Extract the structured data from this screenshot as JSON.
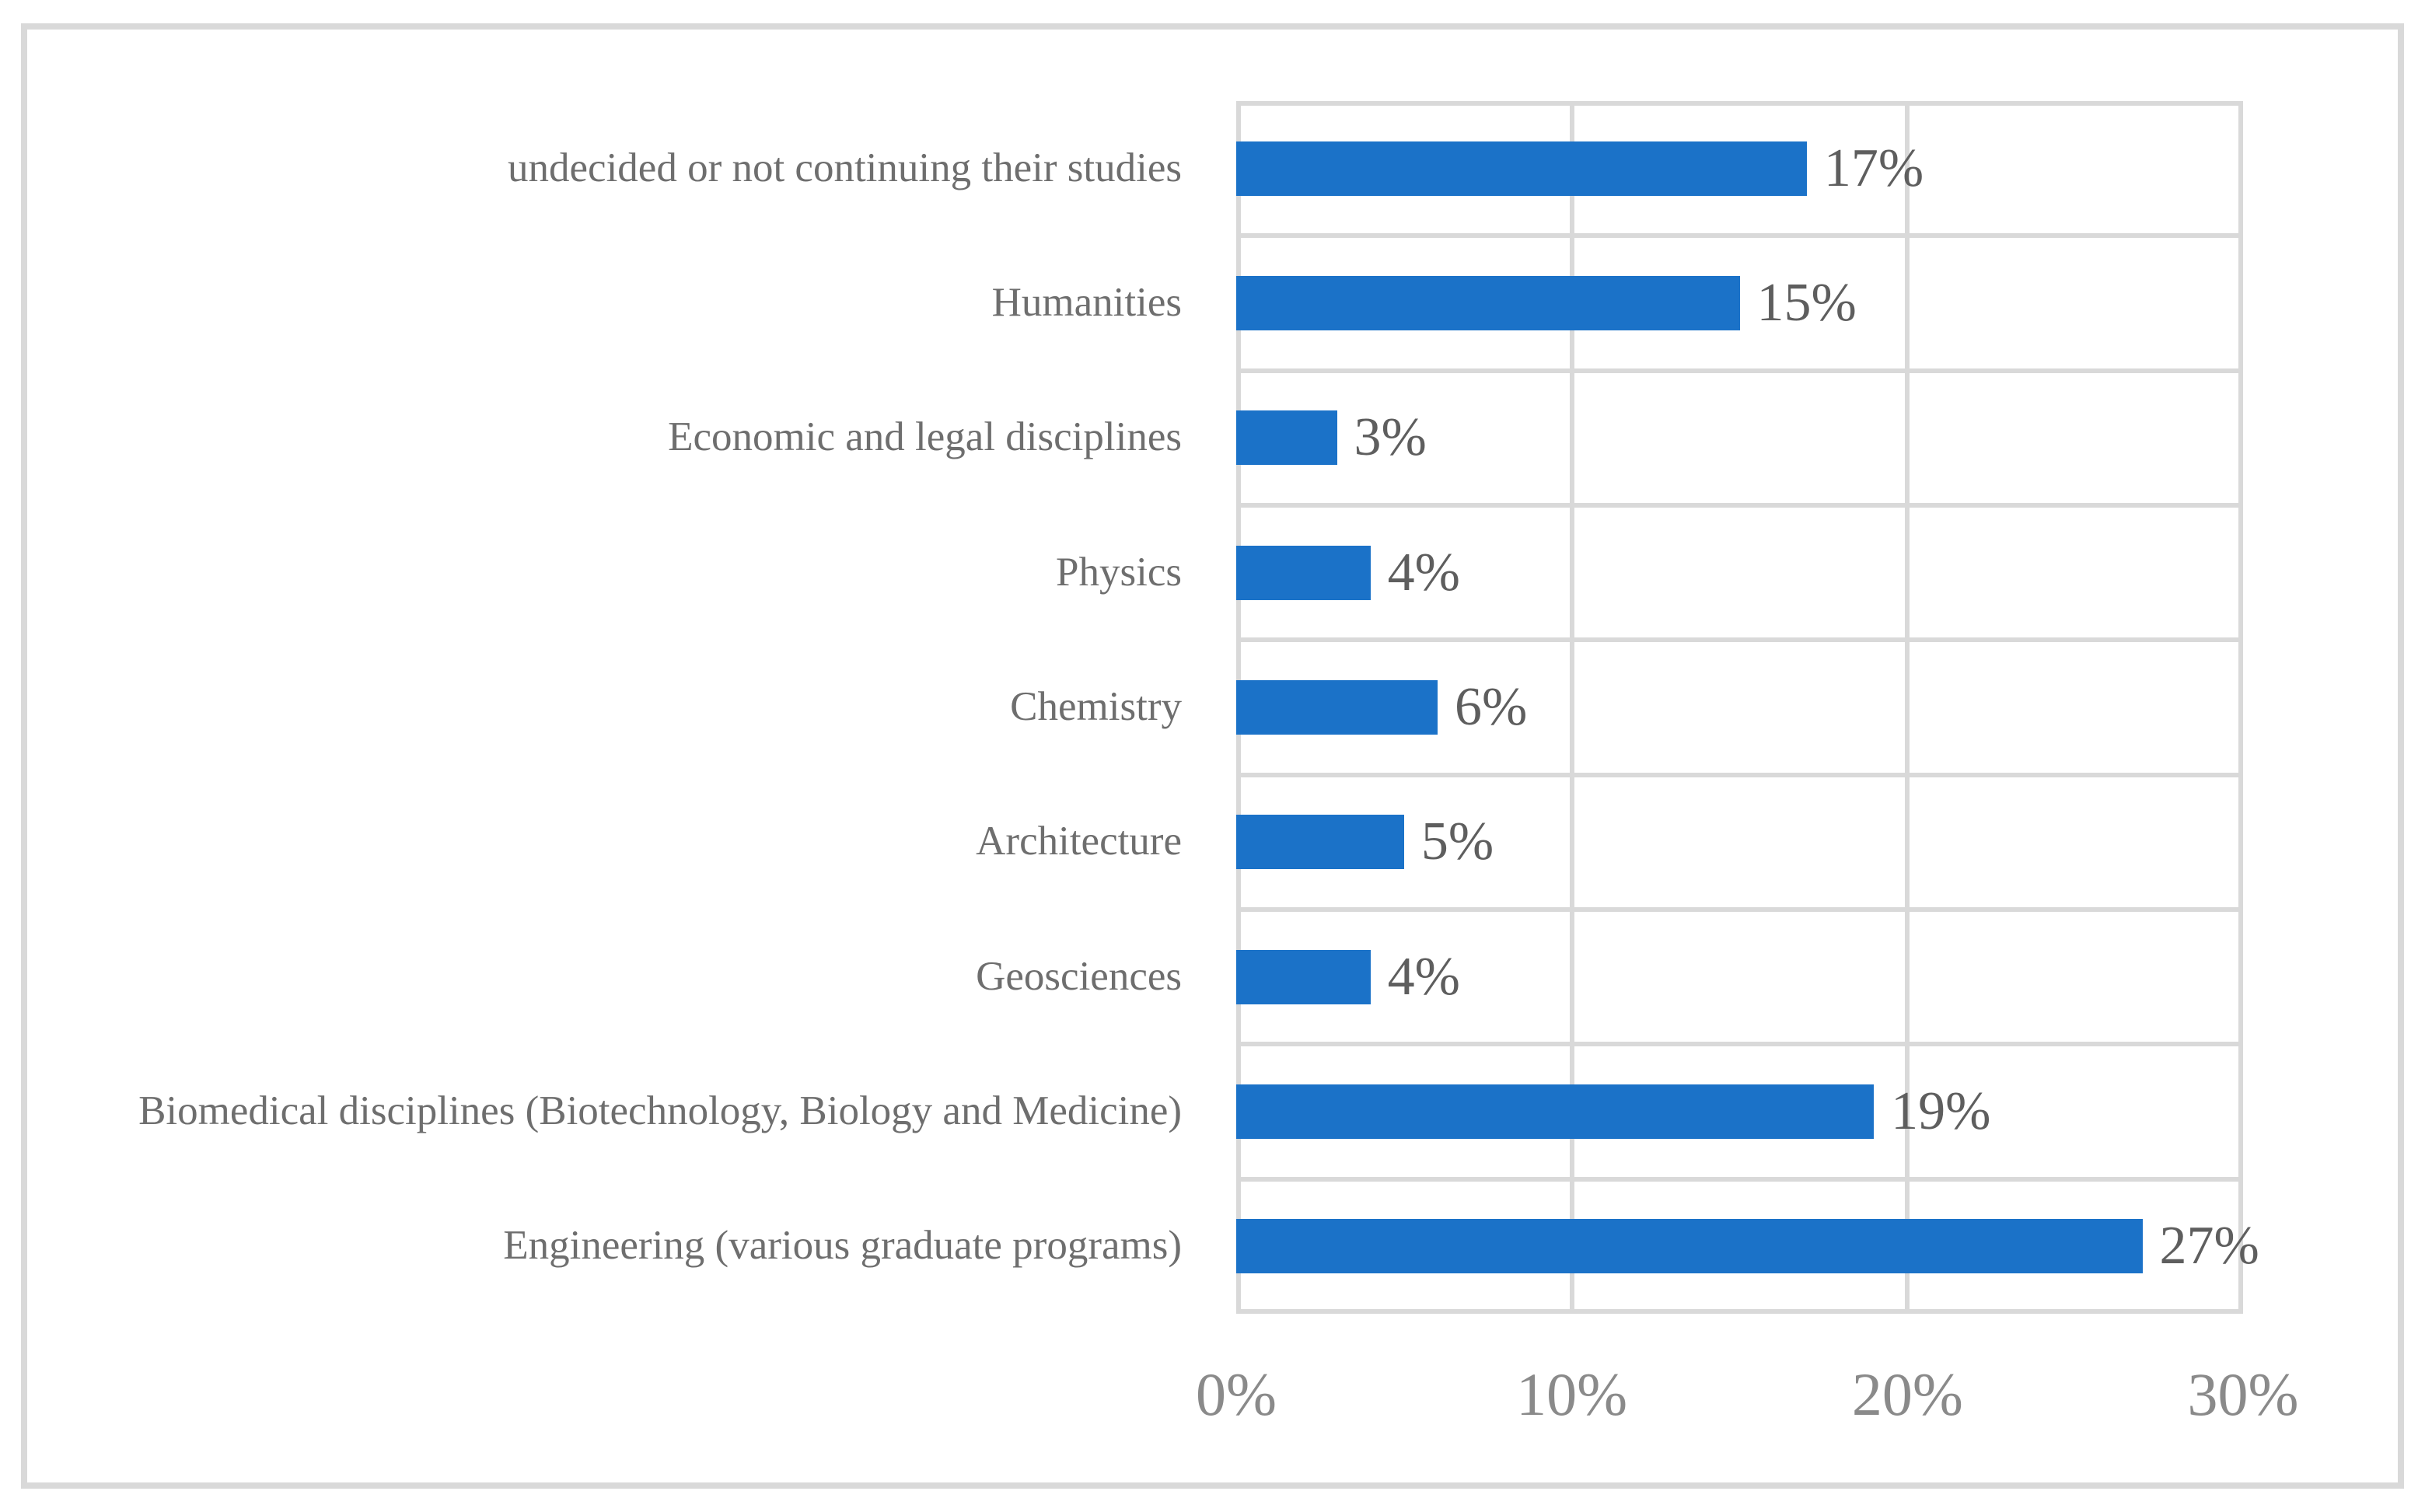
{
  "figure": {
    "background_color": "#FFFFFF",
    "border_color": "#D9D9D9"
  },
  "chart_data": {
    "type": "bar",
    "orientation": "horizontal",
    "title": "",
    "xlabel": "",
    "ylabel": "",
    "categories": [
      "undecided or not continuing their studies",
      "Humanities",
      "Economic and legal disciplines",
      "Physics",
      "Chemistry",
      "Architecture",
      "Geosciences",
      "Biomedical disciplines (Biotechnology, Biology and Medicine)",
      "Engineering (various graduate programs)"
    ],
    "values": [
      17,
      15,
      3,
      4,
      6,
      5,
      4,
      19,
      27
    ],
    "data_labels": [
      "17%",
      "15%",
      "3%",
      "4%",
      "6%",
      "5%",
      "4%",
      "19%",
      "27%"
    ],
    "x_tick_labels": [
      "0%",
      "10%",
      "20%",
      "30%"
    ],
    "x_tick_values": [
      0,
      10,
      20,
      30
    ],
    "xlim": [
      0,
      30
    ],
    "grid": "on",
    "legend": "none",
    "bar_color": "#1B72C8",
    "gridline_color": "#D9D9D9",
    "category_label_color": "#6E6E6E",
    "value_label_color": "#5E5E5E",
    "tick_label_color": "#8A8A8A"
  }
}
